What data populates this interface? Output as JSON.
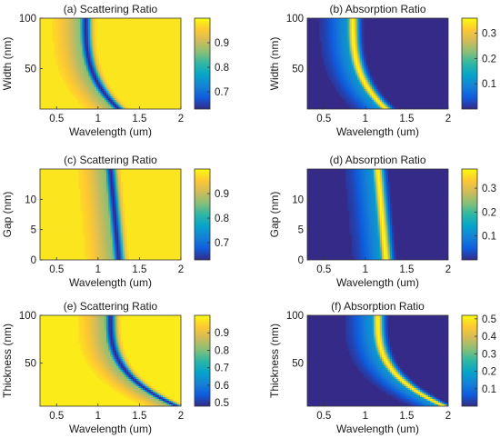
{
  "palette": {
    "parula": [
      "#352a87",
      "#0f5cdd",
      "#1481d6",
      "#06a4ca",
      "#2eb7a4",
      "#87bf77",
      "#d1bb59",
      "#fec832",
      "#f9fb0e"
    ]
  },
  "chart_data": [
    {
      "id": "a",
      "type": "heatmap",
      "title": "(a) Scattering Ratio",
      "xlabel": "Wavelength (um)",
      "ylabel": "Width (nm)",
      "xlim": [
        0.3,
        2.0
      ],
      "ylim": [
        10,
        100
      ],
      "xticks": [
        0.5,
        1,
        1.5,
        2
      ],
      "xtick_labels": [
        "0.5",
        "1",
        "1.5",
        "2"
      ],
      "yticks": [
        50,
        100
      ],
      "ytick_labels": [
        "50",
        "100"
      ],
      "colorbar": {
        "range": [
          0.63,
          1.0
        ],
        "ticks": [
          0.7,
          0.8,
          0.9
        ],
        "tick_labels": [
          "0.7",
          "0.8",
          "0.9"
        ]
      },
      "resonance": {
        "at_top": 0.85,
        "at_bottom": 1.25,
        "curve_power": 3
      },
      "peak_value": 0.63,
      "background_value": 0.98
    },
    {
      "id": "b",
      "type": "heatmap",
      "title": "(b) Absorption Ratio",
      "xlabel": "Wavelength (um)",
      "ylabel": "Width (nm)",
      "xlim": [
        0.3,
        2.0
      ],
      "ylim": [
        10,
        100
      ],
      "xticks": [
        0.5,
        1,
        1.5,
        2
      ],
      "xtick_labels": [
        "0.5",
        "1",
        "1.5",
        "2"
      ],
      "yticks": [
        50,
        100
      ],
      "ytick_labels": [
        "50",
        "100"
      ],
      "colorbar": {
        "range": [
          0.0,
          0.36
        ],
        "ticks": [
          0.1,
          0.2,
          0.3
        ],
        "tick_labels": [
          "0.1",
          "0.2",
          "0.3"
        ]
      },
      "resonance": {
        "at_top": 0.85,
        "at_bottom": 1.25,
        "curve_power": 3
      },
      "peak_value": 0.36,
      "background_value": 0.0
    },
    {
      "id": "c",
      "type": "heatmap",
      "title": "(c) Scattering Ratio",
      "xlabel": "Wavelength (um)",
      "ylabel": "Gap (nm)",
      "xlim": [
        0.3,
        2.0
      ],
      "ylim": [
        0,
        15
      ],
      "xticks": [
        0.5,
        1,
        1.5,
        2
      ],
      "xtick_labels": [
        "0.5",
        "1",
        "1.5",
        "2"
      ],
      "yticks": [
        0,
        5,
        10
      ],
      "ytick_labels": [
        "0",
        "5",
        "10"
      ],
      "colorbar": {
        "range": [
          0.63,
          1.0
        ],
        "ticks": [
          0.7,
          0.8,
          0.9
        ],
        "tick_labels": [
          "0.7",
          "0.8",
          "0.9"
        ]
      },
      "resonance": {
        "at_top": 1.15,
        "at_bottom": 1.25,
        "curve_power": 1
      },
      "peak_value": 0.63,
      "background_value": 0.98
    },
    {
      "id": "d",
      "type": "heatmap",
      "title": "(d) Absorption Ratio",
      "xlabel": "Wavelength (um)",
      "ylabel": "Gap (nm)",
      "xlim": [
        0.3,
        2.0
      ],
      "ylim": [
        0,
        15
      ],
      "xticks": [
        0.5,
        1,
        1.5,
        2
      ],
      "xtick_labels": [
        "0.5",
        "1",
        "1.5",
        "2"
      ],
      "yticks": [
        0,
        5,
        10
      ],
      "ytick_labels": [
        "0",
        "5",
        "10"
      ],
      "colorbar": {
        "range": [
          0.0,
          0.38
        ],
        "ticks": [
          0.1,
          0.2,
          0.3
        ],
        "tick_labels": [
          "0.1",
          "0.2",
          "0.3"
        ]
      },
      "resonance": {
        "at_top": 1.15,
        "at_bottom": 1.25,
        "curve_power": 1
      },
      "peak_value": 0.38,
      "background_value": 0.0
    },
    {
      "id": "e",
      "type": "heatmap",
      "title": "(e) Scattering Ratio",
      "xlabel": "Wavelength (um)",
      "ylabel": "Thickness (nm)",
      "xlim": [
        0.3,
        2.0
      ],
      "ylim": [
        5,
        100
      ],
      "xticks": [
        0.5,
        1,
        1.5,
        2
      ],
      "xtick_labels": [
        "0.5",
        "1",
        "1.5",
        "2"
      ],
      "yticks": [
        50,
        100
      ],
      "ytick_labels": [
        "50",
        "100"
      ],
      "colorbar": {
        "range": [
          0.48,
          1.0
        ],
        "ticks": [
          0.5,
          0.6,
          0.7,
          0.8,
          0.9
        ],
        "tick_labels": [
          "0.5",
          "0.6",
          "0.7",
          "0.8",
          "0.9"
        ]
      },
      "resonance": {
        "at_top": 1.15,
        "at_bottom": 1.95,
        "curve_power": 3
      },
      "peak_value": 0.48,
      "background_value": 0.98
    },
    {
      "id": "f",
      "type": "heatmap",
      "title": "(f) Absorption Ratio",
      "xlabel": "Wavelength (um)",
      "ylabel": "Thickness (nm)",
      "xlim": [
        0.3,
        2.0
      ],
      "ylim": [
        5,
        100
      ],
      "xticks": [
        0.5,
        1,
        1.5,
        2
      ],
      "xtick_labels": [
        "0.5",
        "1",
        "1.5",
        "2"
      ],
      "yticks": [
        50,
        100
      ],
      "ytick_labels": [
        "50",
        "100"
      ],
      "colorbar": {
        "range": [
          0.0,
          0.52
        ],
        "ticks": [
          0.1,
          0.2,
          0.3,
          0.4,
          0.5
        ],
        "tick_labels": [
          "0.1",
          "0.2",
          "0.3",
          "0.4",
          "0.5"
        ]
      },
      "resonance": {
        "at_top": 1.15,
        "at_bottom": 1.95,
        "curve_power": 3
      },
      "peak_value": 0.52,
      "background_value": 0.0
    }
  ]
}
